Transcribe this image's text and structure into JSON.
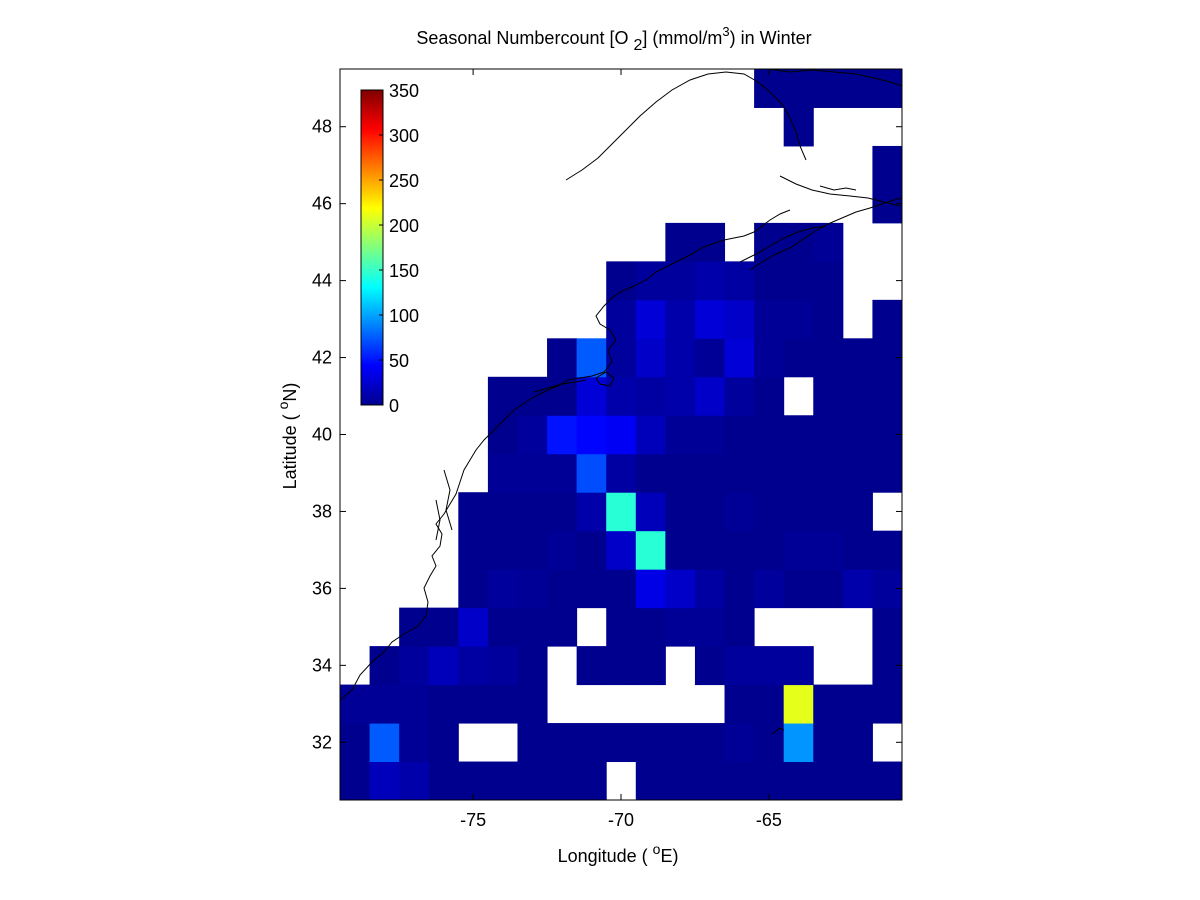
{
  "chart_data": {
    "type": "heatmap",
    "title": "Seasonal Numbercount [O 2] (mmol/m3) in  Winter",
    "title_parts": {
      "prefix": "Seasonal Numbercount [O ",
      "sub": "2",
      "middle": "] (mmol/m",
      "sup": "3",
      "suffix": ") in  Winter"
    },
    "xlabel": "Longitude ( oE)",
    "xlabel_parts": {
      "prefix": "Longitude ( ",
      "sup": "o",
      "suffix": "E)"
    },
    "ylabel": "Latitude ( oN)",
    "ylabel_parts": {
      "prefix": "Latitude ( ",
      "sup": "o",
      "suffix": "N)"
    },
    "xlim": [
      -79.5,
      -60.5
    ],
    "ylim": [
      30.5,
      49.5
    ],
    "xticks": [
      -75,
      -70,
      -65
    ],
    "yticks": [
      32,
      34,
      36,
      38,
      40,
      42,
      44,
      46,
      48
    ],
    "colormap": "jet",
    "clim": [
      0,
      350
    ],
    "colorbar": {
      "ticks": [
        0,
        50,
        100,
        150,
        200,
        250,
        300,
        350
      ],
      "placement": "top-left inside"
    },
    "grid": false,
    "cell_size_deg": 1,
    "cells": [
      [
        -79,
        31,
        5
      ],
      [
        -78,
        31,
        20
      ],
      [
        -77,
        31,
        15
      ],
      [
        -76,
        31,
        5
      ],
      [
        -75,
        31,
        5
      ],
      [
        -74,
        31,
        5
      ],
      [
        -73,
        31,
        5
      ],
      [
        -72,
        31,
        5
      ],
      [
        -71,
        31,
        5
      ],
      [
        -69,
        31,
        5
      ],
      [
        -68,
        31,
        5
      ],
      [
        -67,
        31,
        5
      ],
      [
        -66,
        31,
        5
      ],
      [
        -65,
        31,
        5
      ],
      [
        -64,
        31,
        5
      ],
      [
        -63,
        31,
        5
      ],
      [
        -62,
        31,
        5
      ],
      [
        -61,
        31,
        5
      ],
      [
        -79,
        32,
        5
      ],
      [
        -78,
        32,
        75
      ],
      [
        -77,
        32,
        8
      ],
      [
        -76,
        32,
        5
      ],
      [
        -73,
        32,
        5
      ],
      [
        -72,
        32,
        5
      ],
      [
        -71,
        32,
        5
      ],
      [
        -70,
        32,
        5
      ],
      [
        -69,
        32,
        5
      ],
      [
        -68,
        32,
        5
      ],
      [
        -67,
        32,
        5
      ],
      [
        -66,
        32,
        8
      ],
      [
        -65,
        32,
        5
      ],
      [
        -64,
        32,
        95
      ],
      [
        -63,
        32,
        5
      ],
      [
        -62,
        32,
        5
      ],
      [
        -79,
        33,
        8
      ],
      [
        -78,
        33,
        8
      ],
      [
        -77,
        33,
        8
      ],
      [
        -76,
        33,
        5
      ],
      [
        -75,
        33,
        5
      ],
      [
        -74,
        33,
        5
      ],
      [
        -73,
        33,
        5
      ],
      [
        -66,
        33,
        5
      ],
      [
        -65,
        33,
        5
      ],
      [
        -64,
        33,
        210
      ],
      [
        -63,
        33,
        5
      ],
      [
        -62,
        33,
        5
      ],
      [
        -61,
        33,
        5
      ],
      [
        -78,
        34,
        5
      ],
      [
        -77,
        34,
        10
      ],
      [
        -76,
        34,
        20
      ],
      [
        -75,
        34,
        12
      ],
      [
        -74,
        34,
        10
      ],
      [
        -73,
        34,
        5
      ],
      [
        -71,
        34,
        5
      ],
      [
        -70,
        34,
        5
      ],
      [
        -69,
        34,
        5
      ],
      [
        -67,
        34,
        5
      ],
      [
        -66,
        34,
        10
      ],
      [
        -65,
        34,
        10
      ],
      [
        -64,
        34,
        10
      ],
      [
        -61,
        34,
        5
      ],
      [
        -77,
        35,
        5
      ],
      [
        -76,
        35,
        5
      ],
      [
        -75,
        35,
        25
      ],
      [
        -74,
        35,
        5
      ],
      [
        -73,
        35,
        5
      ],
      [
        -72,
        35,
        5
      ],
      [
        -70,
        35,
        5
      ],
      [
        -69,
        35,
        5
      ],
      [
        -68,
        35,
        8
      ],
      [
        -67,
        35,
        8
      ],
      [
        -66,
        35,
        5
      ],
      [
        -61,
        35,
        5
      ],
      [
        -75,
        36,
        5
      ],
      [
        -74,
        36,
        10
      ],
      [
        -73,
        36,
        8
      ],
      [
        -72,
        36,
        5
      ],
      [
        -71,
        36,
        5
      ],
      [
        -70,
        36,
        5
      ],
      [
        -69,
        36,
        35
      ],
      [
        -68,
        36,
        25
      ],
      [
        -67,
        36,
        12
      ],
      [
        -66,
        36,
        5
      ],
      [
        -65,
        36,
        10
      ],
      [
        -64,
        36,
        5
      ],
      [
        -63,
        36,
        5
      ],
      [
        -62,
        36,
        15
      ],
      [
        -61,
        36,
        10
      ],
      [
        -75,
        37,
        5
      ],
      [
        -74,
        37,
        5
      ],
      [
        -73,
        37,
        5
      ],
      [
        -72,
        37,
        8
      ],
      [
        -71,
        37,
        5
      ],
      [
        -70,
        37,
        25
      ],
      [
        -69,
        37,
        145
      ],
      [
        -68,
        37,
        5
      ],
      [
        -67,
        37,
        5
      ],
      [
        -66,
        37,
        5
      ],
      [
        -65,
        37,
        5
      ],
      [
        -64,
        37,
        8
      ],
      [
        -63,
        37,
        8
      ],
      [
        -62,
        37,
        5
      ],
      [
        -61,
        37,
        5
      ],
      [
        -75,
        38,
        5
      ],
      [
        -74,
        38,
        5
      ],
      [
        -73,
        38,
        5
      ],
      [
        -72,
        38,
        5
      ],
      [
        -71,
        38,
        15
      ],
      [
        -70,
        38,
        145
      ],
      [
        -69,
        38,
        20
      ],
      [
        -68,
        38,
        5
      ],
      [
        -67,
        38,
        5
      ],
      [
        -66,
        38,
        8
      ],
      [
        -65,
        38,
        5
      ],
      [
        -64,
        38,
        5
      ],
      [
        -63,
        38,
        5
      ],
      [
        -62,
        38,
        5
      ],
      [
        -74,
        39,
        8
      ],
      [
        -73,
        39,
        8
      ],
      [
        -72,
        39,
        8
      ],
      [
        -71,
        39,
        70
      ],
      [
        -70,
        39,
        12
      ],
      [
        -69,
        39,
        5
      ],
      [
        -68,
        39,
        5
      ],
      [
        -67,
        39,
        5
      ],
      [
        -66,
        39,
        5
      ],
      [
        -65,
        39,
        5
      ],
      [
        -64,
        39,
        5
      ],
      [
        -63,
        39,
        5
      ],
      [
        -62,
        39,
        5
      ],
      [
        -61,
        39,
        5
      ],
      [
        -74,
        40,
        5
      ],
      [
        -73,
        40,
        10
      ],
      [
        -72,
        40,
        50
      ],
      [
        -71,
        40,
        45
      ],
      [
        -70,
        40,
        40
      ],
      [
        -69,
        40,
        20
      ],
      [
        -68,
        40,
        8
      ],
      [
        -67,
        40,
        8
      ],
      [
        -66,
        40,
        5
      ],
      [
        -65,
        40,
        5
      ],
      [
        -64,
        40,
        5
      ],
      [
        -63,
        40,
        5
      ],
      [
        -62,
        40,
        5
      ],
      [
        -61,
        40,
        5
      ],
      [
        -74,
        41,
        5
      ],
      [
        -73,
        41,
        5
      ],
      [
        -72,
        41,
        5
      ],
      [
        -71,
        41,
        30
      ],
      [
        -70,
        41,
        15
      ],
      [
        -69,
        41,
        12
      ],
      [
        -68,
        41,
        15
      ],
      [
        -67,
        41,
        25
      ],
      [
        -66,
        41,
        10
      ],
      [
        -65,
        41,
        5
      ],
      [
        -63,
        41,
        5
      ],
      [
        -62,
        41,
        5
      ],
      [
        -61,
        41,
        5
      ],
      [
        -72,
        42,
        5
      ],
      [
        -71,
        42,
        75
      ],
      [
        -70,
        42,
        10
      ],
      [
        -69,
        42,
        25
      ],
      [
        -68,
        42,
        15
      ],
      [
        -67,
        42,
        8
      ],
      [
        -66,
        42,
        30
      ],
      [
        -65,
        42,
        8
      ],
      [
        -64,
        42,
        5
      ],
      [
        -63,
        42,
        5
      ],
      [
        -62,
        42,
        5
      ],
      [
        -61,
        42,
        5
      ],
      [
        -70,
        43,
        10
      ],
      [
        -69,
        43,
        30
      ],
      [
        -68,
        43,
        15
      ],
      [
        -67,
        43,
        30
      ],
      [
        -66,
        43,
        25
      ],
      [
        -65,
        43,
        8
      ],
      [
        -64,
        43,
        8
      ],
      [
        -63,
        43,
        5
      ],
      [
        -61,
        43,
        5
      ],
      [
        -70,
        44,
        5
      ],
      [
        -69,
        44,
        10
      ],
      [
        -68,
        44,
        10
      ],
      [
        -67,
        44,
        15
      ],
      [
        -66,
        44,
        12
      ],
      [
        -65,
        44,
        5
      ],
      [
        -64,
        44,
        5
      ],
      [
        -63,
        44,
        5
      ],
      [
        -68,
        45,
        5
      ],
      [
        -67,
        45,
        5
      ],
      [
        -65,
        45,
        5
      ],
      [
        -64,
        45,
        5
      ],
      [
        -63,
        45,
        8
      ],
      [
        -61,
        46,
        5
      ],
      [
        -61,
        47,
        5
      ],
      [
        -64,
        48,
        5
      ],
      [
        -61,
        49,
        5
      ],
      [
        -64,
        49,
        5
      ],
      [
        -65,
        49,
        5
      ],
      [
        -63,
        49,
        5
      ],
      [
        -62,
        49,
        5
      ]
    ]
  }
}
